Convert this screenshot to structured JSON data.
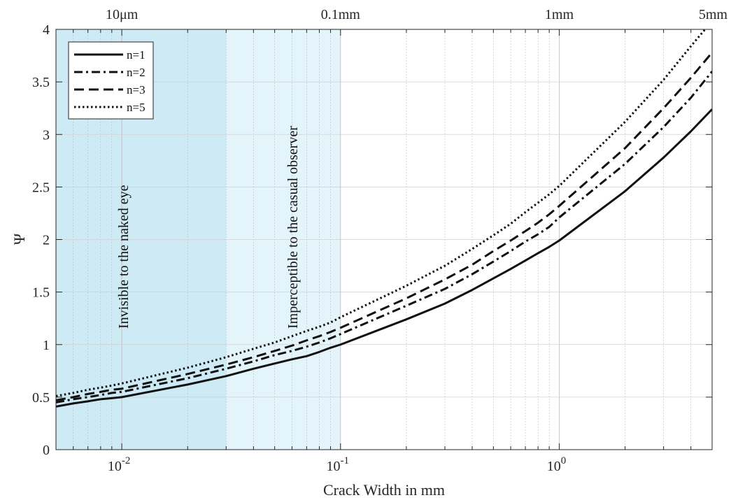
{
  "chart_data": {
    "type": "line",
    "title": "",
    "xlabel": "Crack Width in mm",
    "ylabel": "Ψ",
    "xscale": "log",
    "xlim": [
      0.005,
      5
    ],
    "ylim": [
      0,
      4
    ],
    "grid": true,
    "legend_position": "top-left",
    "x_tick_labels": [
      {
        "x": 0.01,
        "base": "10",
        "exp": "-2"
      },
      {
        "x": 0.1,
        "base": "10",
        "exp": "-1"
      },
      {
        "x": 1,
        "base": "10",
        "exp": "0"
      }
    ],
    "y_ticks": [
      0,
      0.5,
      1,
      1.5,
      2,
      2.5,
      3,
      3.5,
      4
    ],
    "y_tick_labels": [
      "0",
      "0.5",
      "1",
      "1.5",
      "2",
      "2.5",
      "3",
      "3.5",
      "4"
    ],
    "top_axis_labels": [
      {
        "x": 0.01,
        "label": "10μm"
      },
      {
        "x": 0.1,
        "label": "0.1mm"
      },
      {
        "x": 1,
        "label": "1mm"
      },
      {
        "x": 5,
        "label": "5mm"
      }
    ],
    "regions": [
      {
        "x_start": 0.005,
        "x_end": 0.03,
        "label": "Invisible to the naked eye",
        "color": "#cdeaf5"
      },
      {
        "x_start": 0.03,
        "x_end": 0.1,
        "label": "Imperceptible to the casual observer",
        "color": "#e3f4fa"
      }
    ],
    "x": [
      0.005,
      0.006,
      0.007,
      0.008,
      0.009,
      0.01,
      0.02,
      0.03,
      0.04,
      0.05,
      0.06,
      0.07,
      0.08,
      0.09,
      0.1,
      0.2,
      0.3,
      0.4,
      0.5,
      0.6,
      0.7,
      0.8,
      0.9,
      1,
      2,
      3,
      4,
      5
    ],
    "series": [
      {
        "name": "n=1",
        "dash": "solid",
        "values": [
          0.41,
          0.44,
          0.46,
          0.48,
          0.49,
          0.5,
          0.62,
          0.7,
          0.77,
          0.82,
          0.86,
          0.89,
          0.93,
          0.97,
          1.0,
          1.24,
          1.39,
          1.52,
          1.63,
          1.72,
          1.8,
          1.87,
          1.93,
          1.99,
          2.46,
          2.78,
          3.03,
          3.24
        ]
      },
      {
        "name": "n=2",
        "dash": "dashdot",
        "values": [
          0.45,
          0.48,
          0.5,
          0.52,
          0.54,
          0.55,
          0.68,
          0.77,
          0.84,
          0.9,
          0.94,
          0.98,
          1.02,
          1.06,
          1.1,
          1.37,
          1.53,
          1.67,
          1.79,
          1.89,
          1.98,
          2.05,
          2.12,
          2.21,
          2.72,
          3.07,
          3.35,
          3.6
        ]
      },
      {
        "name": "n=3",
        "dash": "dash",
        "values": [
          0.47,
          0.5,
          0.53,
          0.55,
          0.57,
          0.58,
          0.72,
          0.81,
          0.88,
          0.94,
          0.99,
          1.04,
          1.08,
          1.12,
          1.16,
          1.44,
          1.62,
          1.76,
          1.89,
          1.99,
          2.08,
          2.16,
          2.24,
          2.32,
          2.87,
          3.25,
          3.54,
          3.78
        ]
      },
      {
        "name": "n=5",
        "dash": "dot",
        "values": [
          0.51,
          0.54,
          0.57,
          0.59,
          0.61,
          0.63,
          0.78,
          0.88,
          0.96,
          1.02,
          1.08,
          1.13,
          1.17,
          1.21,
          1.26,
          1.56,
          1.75,
          1.91,
          2.04,
          2.15,
          2.26,
          2.35,
          2.43,
          2.51,
          3.12,
          3.52,
          3.84,
          4.08
        ]
      }
    ]
  }
}
